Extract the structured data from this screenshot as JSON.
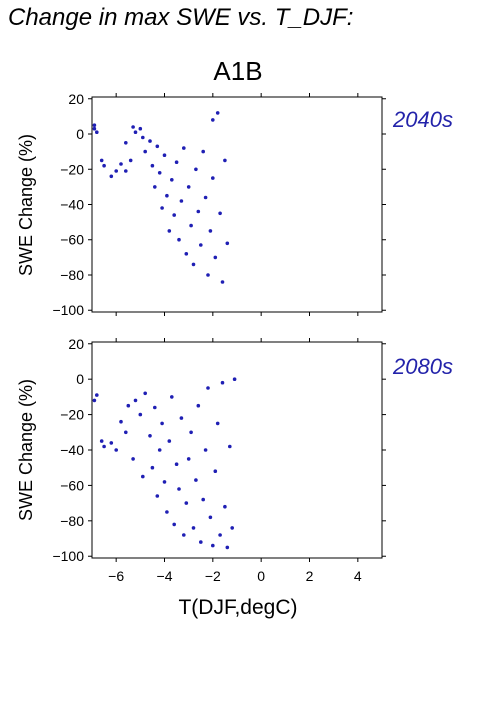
{
  "title": "Change in max SWE vs. T_DJF:",
  "scenario": "A1B",
  "colors": {
    "points": "#1f1fb4",
    "period_label": "#2323aa",
    "axes": "#000000"
  },
  "chart_data": [
    {
      "type": "scatter",
      "period_label": "2040s",
      "xlabel": "",
      "ylabel": "SWE Change (%)",
      "xlim": [
        -7,
        5
      ],
      "ylim": [
        -101,
        21
      ],
      "xticks": [
        -6,
        -4,
        -2,
        0,
        2,
        4
      ],
      "yticks": [
        -100,
        -80,
        -60,
        -40,
        -20,
        0,
        20
      ],
      "ytick_labels": [
        "−100",
        "−80",
        "−60",
        "−40",
        "−20",
        "0",
        "20"
      ],
      "series": [
        {
          "points": [
            [
              -6.9,
              3
            ],
            [
              -6.9,
              5
            ],
            [
              -6.8,
              1
            ],
            [
              -6.6,
              -15
            ],
            [
              -6.5,
              -18
            ],
            [
              -6.2,
              -24
            ],
            [
              -6.0,
              -21
            ],
            [
              -5.8,
              -17
            ],
            [
              -5.6,
              -21
            ],
            [
              -5.4,
              -15
            ],
            [
              -5.6,
              -5
            ],
            [
              -5.3,
              4
            ],
            [
              -5.2,
              1
            ],
            [
              -5.0,
              3
            ],
            [
              -4.9,
              -2
            ],
            [
              -4.8,
              -10
            ],
            [
              -4.6,
              -4
            ],
            [
              -4.5,
              -18
            ],
            [
              -4.4,
              -30
            ],
            [
              -4.3,
              -7
            ],
            [
              -4.2,
              -22
            ],
            [
              -4.1,
              -42
            ],
            [
              -4.0,
              -12
            ],
            [
              -3.9,
              -35
            ],
            [
              -3.8,
              -55
            ],
            [
              -3.7,
              -26
            ],
            [
              -3.6,
              -46
            ],
            [
              -3.5,
              -16
            ],
            [
              -3.4,
              -60
            ],
            [
              -3.3,
              -38
            ],
            [
              -3.2,
              -8
            ],
            [
              -3.1,
              -68
            ],
            [
              -3.0,
              -30
            ],
            [
              -2.9,
              -52
            ],
            [
              -2.8,
              -74
            ],
            [
              -2.7,
              -20
            ],
            [
              -2.6,
              -44
            ],
            [
              -2.5,
              -63
            ],
            [
              -2.4,
              -10
            ],
            [
              -2.3,
              -36
            ],
            [
              -2.2,
              -80
            ],
            [
              -2.1,
              -55
            ],
            [
              -2.0,
              -25
            ],
            [
              -2.0,
              8
            ],
            [
              -1.9,
              -70
            ],
            [
              -1.8,
              12
            ],
            [
              -1.7,
              -45
            ],
            [
              -1.6,
              -84
            ],
            [
              -1.5,
              -15
            ],
            [
              -1.4,
              -62
            ]
          ]
        }
      ]
    },
    {
      "type": "scatter",
      "period_label": "2080s",
      "xlabel": "T(DJF,degC)",
      "ylabel": "SWE Change (%)",
      "xlim": [
        -7,
        5
      ],
      "ylim": [
        -101,
        21
      ],
      "xticks": [
        -6,
        -4,
        -2,
        0,
        2,
        4
      ],
      "xtick_labels": [
        "−6",
        "−4",
        "−2",
        "0",
        "2",
        "4"
      ],
      "yticks": [
        -100,
        -80,
        -60,
        -40,
        -20,
        0,
        20
      ],
      "ytick_labels": [
        "−100",
        "−80",
        "−60",
        "−40",
        "−20",
        "0",
        "20"
      ],
      "series": [
        {
          "points": [
            [
              -6.9,
              -12
            ],
            [
              -6.8,
              -9
            ],
            [
              -6.6,
              -35
            ],
            [
              -6.5,
              -38
            ],
            [
              -6.2,
              -36
            ],
            [
              -6.0,
              -40
            ],
            [
              -5.8,
              -24
            ],
            [
              -5.6,
              -30
            ],
            [
              -5.5,
              -15
            ],
            [
              -5.3,
              -45
            ],
            [
              -5.2,
              -12
            ],
            [
              -5.0,
              -20
            ],
            [
              -4.9,
              -55
            ],
            [
              -4.8,
              -8
            ],
            [
              -4.6,
              -32
            ],
            [
              -4.5,
              -50
            ],
            [
              -4.4,
              -16
            ],
            [
              -4.3,
              -66
            ],
            [
              -4.2,
              -40
            ],
            [
              -4.1,
              -25
            ],
            [
              -4.0,
              -58
            ],
            [
              -3.9,
              -75
            ],
            [
              -3.8,
              -35
            ],
            [
              -3.7,
              -10
            ],
            [
              -3.6,
              -82
            ],
            [
              -3.5,
              -48
            ],
            [
              -3.4,
              -62
            ],
            [
              -3.3,
              -22
            ],
            [
              -3.2,
              -88
            ],
            [
              -3.1,
              -70
            ],
            [
              -3.0,
              -45
            ],
            [
              -2.9,
              -30
            ],
            [
              -2.8,
              -84
            ],
            [
              -2.7,
              -57
            ],
            [
              -2.6,
              -15
            ],
            [
              -2.5,
              -92
            ],
            [
              -2.4,
              -68
            ],
            [
              -2.3,
              -40
            ],
            [
              -2.2,
              -5
            ],
            [
              -2.1,
              -78
            ],
            [
              -2.0,
              -94
            ],
            [
              -1.9,
              -52
            ],
            [
              -1.8,
              -25
            ],
            [
              -1.7,
              -88
            ],
            [
              -1.6,
              -2
            ],
            [
              -1.5,
              -72
            ],
            [
              -1.4,
              -95
            ],
            [
              -1.3,
              -38
            ],
            [
              -1.2,
              -84
            ],
            [
              -1.1,
              0
            ]
          ]
        }
      ]
    }
  ]
}
